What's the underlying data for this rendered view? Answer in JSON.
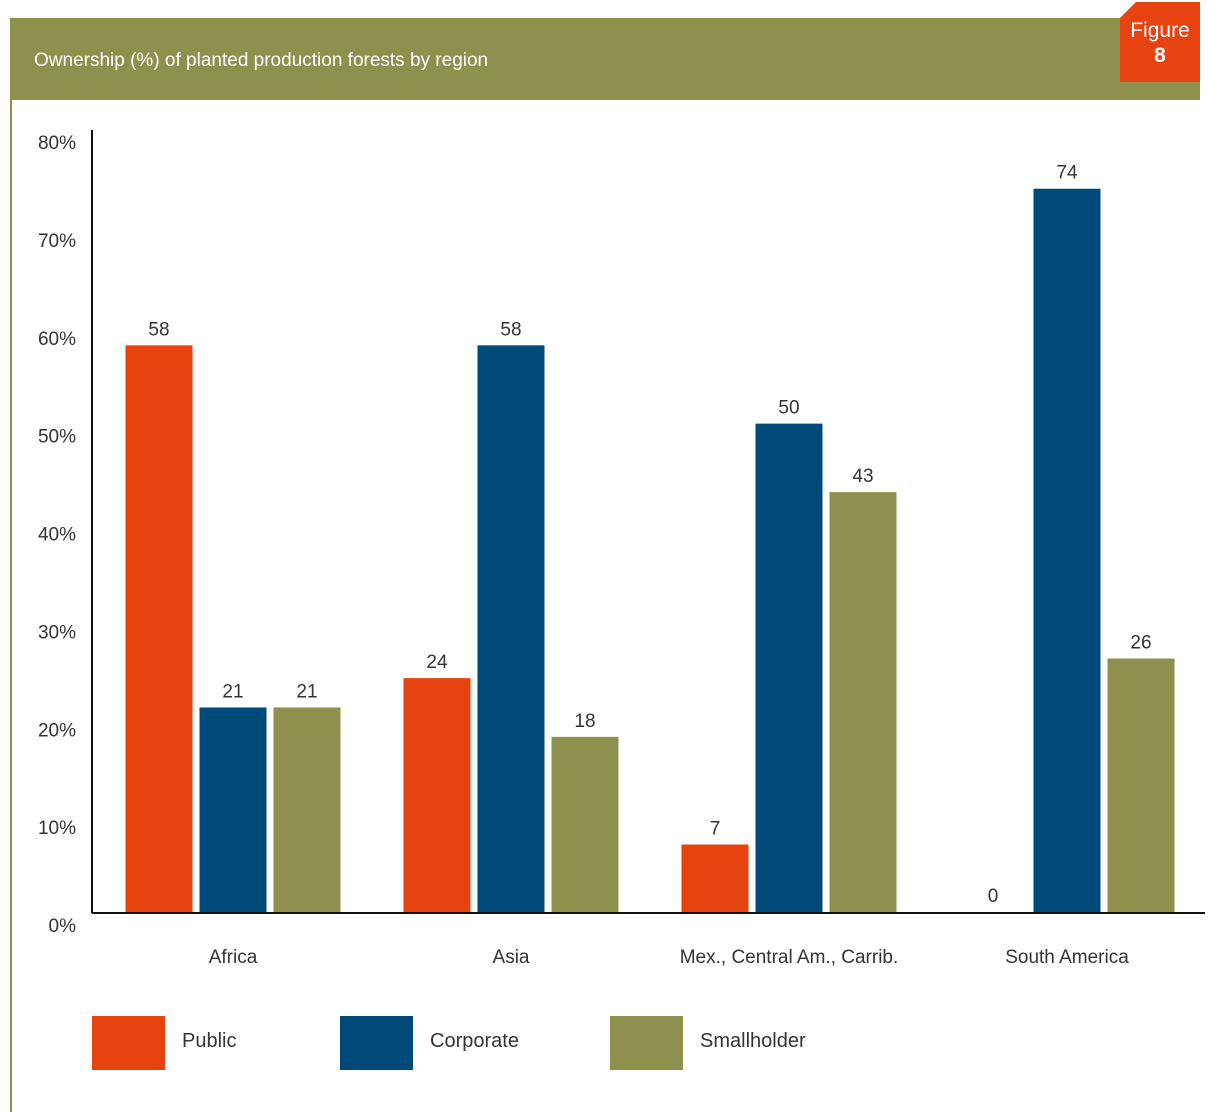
{
  "header": {
    "title": "Ownership (%) of planted production forests by region",
    "badge_word": "Figure",
    "badge_number": "8"
  },
  "colors": {
    "header_bg": "#8e914d",
    "badge_bg": "#e64310"
  },
  "chart_data": {
    "type": "bar",
    "title": "Ownership (%) of planted production forests by region",
    "xlabel": "",
    "ylabel": "",
    "categories": [
      "Africa",
      "Asia",
      "Mex., Central Am., Carrib.",
      "South America"
    ],
    "series": [
      {
        "name": "Public",
        "color": "#e64310",
        "values": [
          58,
          24,
          7,
          0
        ]
      },
      {
        "name": "Corporate",
        "color": "#004a7a",
        "values": [
          21,
          58,
          50,
          74
        ]
      },
      {
        "name": "Smallholder",
        "color": "#8e914d",
        "values": [
          21,
          18,
          43,
          26
        ]
      }
    ],
    "ylim": [
      0,
      80
    ],
    "yticks": [
      "0%",
      "10%",
      "20%",
      "30%",
      "40%",
      "50%",
      "60%",
      "70%",
      "80%"
    ],
    "grid": false,
    "legend_position": "bottom"
  }
}
